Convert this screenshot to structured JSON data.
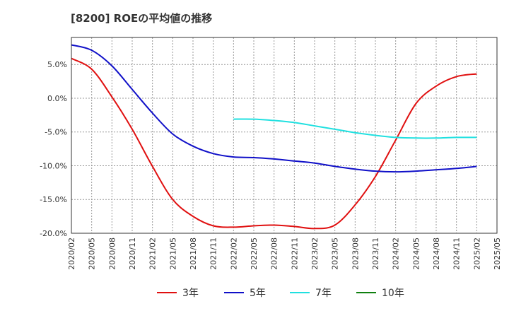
{
  "chart_data": {
    "type": "line",
    "title": "[8200]  ROEの平均値の推移",
    "xlabel": "",
    "ylabel": "",
    "x": [
      "2020/02",
      "2020/05",
      "2020/08",
      "2020/11",
      "2021/02",
      "2021/05",
      "2021/08",
      "2021/11",
      "2022/02",
      "2022/05",
      "2022/08",
      "2022/11",
      "2023/02",
      "2023/05",
      "2023/08",
      "2023/11",
      "2024/02",
      "2024/05",
      "2024/08",
      "2024/11",
      "2025/02",
      "2025/05"
    ],
    "ylim": [
      -20,
      9
    ],
    "yticks": [
      5,
      0,
      -5,
      -10,
      -15,
      -20
    ],
    "ytick_labels": [
      "5.0%",
      "0.0%",
      "-5.0%",
      "-10.0%",
      "-15.0%",
      "-20.0%"
    ],
    "grid": true,
    "legend_position": "bottom",
    "series": [
      {
        "name": "3年",
        "color": "#e01010",
        "values": [
          5.9,
          4.3,
          0.2,
          -4.6,
          -10.1,
          -15.0,
          -17.5,
          -18.9,
          -19.1,
          -18.9,
          -18.8,
          -19.0,
          -19.3,
          -18.8,
          -15.8,
          -11.6,
          -6.2,
          -0.8,
          1.8,
          3.2,
          3.6,
          null
        ]
      },
      {
        "name": "5年",
        "color": "#1010c8",
        "values": [
          7.9,
          7.1,
          4.8,
          1.3,
          -2.2,
          -5.3,
          -7.1,
          -8.2,
          -8.7,
          -8.8,
          -9.0,
          -9.3,
          -9.6,
          -10.1,
          -10.5,
          -10.8,
          -10.9,
          -10.8,
          -10.6,
          -10.4,
          -10.1,
          null
        ]
      },
      {
        "name": "7年",
        "color": "#20e0e0",
        "values": [
          null,
          null,
          null,
          null,
          null,
          null,
          null,
          null,
          -3.1,
          -3.1,
          -3.3,
          -3.6,
          -4.1,
          -4.6,
          -5.1,
          -5.5,
          -5.8,
          -5.9,
          -5.9,
          -5.8,
          -5.8,
          null
        ]
      },
      {
        "name": "10年",
        "color": "#108010",
        "values": [
          null,
          null,
          null,
          null,
          null,
          null,
          null,
          null,
          null,
          null,
          null,
          null,
          null,
          null,
          null,
          null,
          null,
          null,
          null,
          null,
          null,
          null
        ]
      }
    ]
  }
}
